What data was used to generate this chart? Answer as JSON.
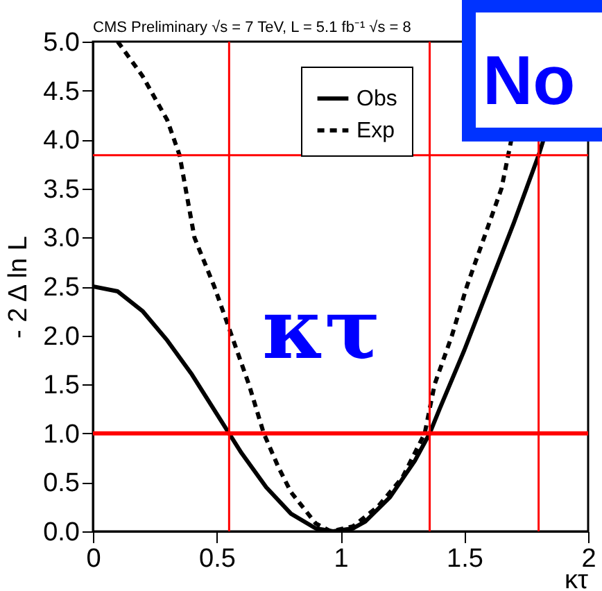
{
  "chart_data": {
    "type": "line",
    "title": "CMS Preliminary  √s = 7 TeV, L = 5.1 fb⁻¹  √s = 8",
    "xlabel": "κτ",
    "ylabel": "- 2 Δ ln L",
    "xlim": [
      0,
      2
    ],
    "ylim": [
      0,
      5
    ],
    "xticks": [
      0,
      0.5,
      1,
      1.5,
      2
    ],
    "yticks": [
      {
        "value": 0,
        "label": "0.0"
      },
      {
        "value": 0.5,
        "label": "0.5"
      },
      {
        "value": 1,
        "label": "1.0"
      },
      {
        "value": 1.5,
        "label": "1.5"
      },
      {
        "value": 2,
        "label": "2.0"
      },
      {
        "value": 2.5,
        "label": "2.5"
      },
      {
        "value": 3,
        "label": "3.0"
      },
      {
        "value": 3.5,
        "label": "3.5"
      },
      {
        "value": 4,
        "label": "4.0"
      },
      {
        "value": 4.5,
        "label": "4.5"
      },
      {
        "value": 5,
        "label": "5.0"
      }
    ],
    "series": [
      {
        "name": "Obs",
        "color": "#000000",
        "line_style": "solid",
        "x": [
          0,
          0.1,
          0.2,
          0.3,
          0.4,
          0.5,
          0.55,
          0.6,
          0.7,
          0.8,
          0.9,
          0.97,
          1.05,
          1.1,
          1.2,
          1.3,
          1.36,
          1.4,
          1.5,
          1.6,
          1.7,
          1.8,
          1.82
        ],
        "values": [
          2.5,
          2.45,
          2.25,
          1.95,
          1.6,
          1.2,
          1.0,
          0.8,
          0.45,
          0.18,
          0.03,
          0,
          0.03,
          0.1,
          0.35,
          0.72,
          1.0,
          1.25,
          1.85,
          2.5,
          3.15,
          3.84,
          4.0
        ]
      },
      {
        "name": "Exp",
        "color": "#000000",
        "line_style": "dashed",
        "x": [
          0.1,
          0.2,
          0.3,
          0.35,
          0.41,
          0.49,
          0.56,
          0.63,
          0.69,
          0.75,
          0.8,
          0.9,
          0.96,
          1.05,
          1.15,
          1.25,
          1.34,
          1.38,
          1.45,
          1.51,
          1.58,
          1.65,
          1.69
        ],
        "values": [
          5.0,
          4.65,
          4.2,
          3.84,
          3.0,
          2.5,
          2.0,
          1.5,
          1.0,
          0.65,
          0.4,
          0.08,
          0,
          0.05,
          0.25,
          0.55,
          1.0,
          1.5,
          2.0,
          2.5,
          3.0,
          3.5,
          4.0
        ]
      }
    ],
    "ref_lines": [
      {
        "axis": "y",
        "value": 1,
        "color": "#ff0000"
      },
      {
        "axis": "y",
        "value": 3.84,
        "color": "#ff0000"
      },
      {
        "axis": "x",
        "value": 0.55,
        "color": "#ff0000"
      },
      {
        "axis": "x",
        "value": 1.36,
        "color": "#ff0000"
      },
      {
        "axis": "x",
        "value": 1.8,
        "color": "#ff0000"
      }
    ],
    "annotations": [
      "κτ",
      "No"
    ],
    "legend": "top right",
    "grid": false
  }
}
